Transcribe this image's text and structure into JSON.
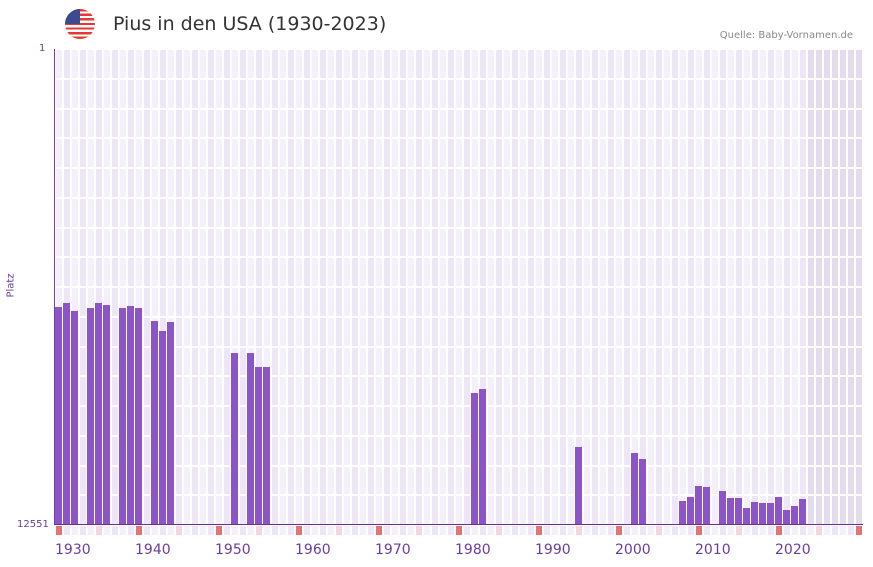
{
  "header": {
    "flag_icon": "us-flag-icon",
    "title": "Pius in den USA (1930-2023)",
    "source": "Quelle: Baby-Vornamen.de"
  },
  "axes": {
    "y_label": "Platz",
    "y_top": "1",
    "y_bottom": "12551"
  },
  "colors": {
    "bar": "#8b55c8",
    "grid_a": "#f3effb",
    "grid_b": "#ece6f7",
    "future_shade": "#e2dced",
    "decade_marker": "#e57373",
    "half_decade_marker": "#f7d6df",
    "axis": "#6a2c9a"
  },
  "chart_data": {
    "type": "bar",
    "title": "Pius in den USA (1930-2023)",
    "xlabel": "",
    "ylabel": "Platz",
    "ylim": [
      12551,
      1
    ],
    "y_inverted": true,
    "xlim": [
      1930,
      2030
    ],
    "x_ticks": [
      "1930",
      "1940",
      "1950",
      "1960",
      "1970",
      "1980",
      "1990",
      "2000",
      "2010",
      "2020"
    ],
    "grid": true,
    "legend": null,
    "x": [
      1930,
      1931,
      1932,
      1934,
      1935,
      1936,
      1938,
      1939,
      1940,
      1942,
      1943,
      1944,
      1952,
      1954,
      1955,
      1956,
      1982,
      1983,
      1995,
      2002,
      2003,
      2008,
      2009,
      2010,
      2011,
      2013,
      2014,
      2015,
      2016,
      2017,
      2018,
      2019,
      2020,
      2021,
      2022,
      2023
    ],
    "values": [
      6800,
      6690,
      6900,
      6820,
      6690,
      6740,
      6820,
      6770,
      6820,
      7160,
      7430,
      7190,
      8010,
      8010,
      8380,
      8380,
      9070,
      8960,
      10490,
      10650,
      10810,
      11920,
      11810,
      11520,
      11550,
      11650,
      11840,
      11840,
      12100,
      11940,
      11970,
      11970,
      11810,
      12150,
      12050,
      11860
    ]
  }
}
